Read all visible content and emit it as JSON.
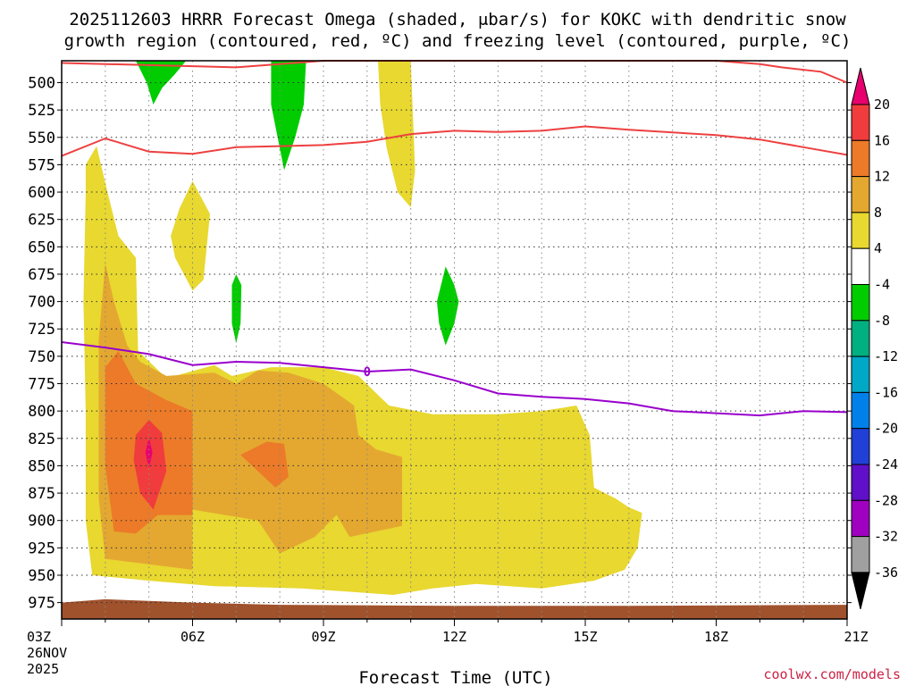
{
  "chart_data": {
    "type": "contour",
    "title_line1": "2025112603 HRRR Forecast Omega (shaded, μbar/s) for KOKC with dendritic snow",
    "title_line2": "growth region (contoured, red, ºC) and freezing level (contoured, purple, ºC)",
    "xlabel": "Forecast Time (UTC)",
    "credit": "coolwx.com/models",
    "x_ticks": [
      {
        "hour": 0,
        "label": "03Z"
      },
      {
        "hour": 3,
        "label": "06Z"
      },
      {
        "hour": 6,
        "label": "09Z"
      },
      {
        "hour": 9,
        "label": "12Z"
      },
      {
        "hour": 12,
        "label": "15Z"
      },
      {
        "hour": 15,
        "label": "18Z"
      },
      {
        "hour": 18,
        "label": "21Z"
      }
    ],
    "date_line1": "26NOV",
    "date_line2": "2025",
    "y_ticks": [
      500,
      525,
      550,
      575,
      600,
      625,
      650,
      675,
      700,
      725,
      750,
      775,
      800,
      825,
      850,
      875,
      900,
      925,
      950,
      975
    ],
    "xlim_hours": [
      0,
      18
    ],
    "ylim_hpa": [
      480,
      990
    ],
    "colorbar": {
      "labels": [
        "20",
        "16",
        "12",
        "8",
        "4",
        "-4",
        "-8",
        "-12",
        "-16",
        "-20",
        "-24",
        "-28",
        "-32",
        "-36"
      ],
      "colors_top_to_bottom": [
        "#e8006e",
        "#f03c3c",
        "#ec7a28",
        "#e4a830",
        "#e8d830",
        "#ffffff",
        "#00cc00",
        "#00b080",
        "#00a8c8",
        "#0080e8",
        "#2040d8",
        "#6010c8",
        "#a000c0",
        "#a0a0a0",
        "#000000"
      ]
    },
    "omega_colors": {
      "c4": "#e8d830",
      "c8": "#e4a830",
      "c12": "#ec7a28",
      "c16": "#f03c3c",
      "c20": "#e8006e",
      "neg4": "#00cc00",
      "ground": "#a0522d"
    },
    "omega_regions": [
      {
        "level": "c4",
        "points": [
          [
            0.55,
            575
          ],
          [
            0.8,
            558
          ],
          [
            1.05,
            600
          ],
          [
            1.3,
            640
          ],
          [
            1.7,
            660
          ],
          [
            1.75,
            745
          ],
          [
            2.4,
            770
          ],
          [
            3.5,
            758
          ],
          [
            3.9,
            768
          ],
          [
            4.8,
            760
          ],
          [
            6.0,
            760
          ],
          [
            6.8,
            768
          ],
          [
            7.5,
            795
          ],
          [
            8.5,
            803
          ],
          [
            9.5,
            803
          ],
          [
            10.0,
            803
          ],
          [
            11.0,
            800
          ],
          [
            11.8,
            795
          ],
          [
            12.1,
            822
          ],
          [
            12.2,
            870
          ],
          [
            12.7,
            880
          ],
          [
            13.0,
            888
          ],
          [
            13.3,
            893
          ],
          [
            13.2,
            925
          ],
          [
            12.9,
            945
          ],
          [
            12.2,
            955
          ],
          [
            11.0,
            962
          ],
          [
            9.5,
            958
          ],
          [
            8.5,
            962
          ],
          [
            7.6,
            968
          ],
          [
            5.5,
            962
          ],
          [
            3.5,
            960
          ],
          [
            2.0,
            955
          ],
          [
            0.7,
            950
          ],
          [
            0.55,
            900
          ],
          [
            0.55,
            800
          ],
          [
            0.5,
            700
          ],
          [
            0.55,
            600
          ]
        ]
      },
      {
        "level": "c4",
        "points": [
          [
            2.5,
            640
          ],
          [
            2.7,
            615
          ],
          [
            3.0,
            590
          ],
          [
            3.4,
            620
          ],
          [
            3.25,
            680
          ],
          [
            3.0,
            690
          ],
          [
            2.6,
            660
          ]
        ]
      },
      {
        "level": "c4",
        "points": [
          [
            7.25,
            480
          ],
          [
            8.0,
            480
          ],
          [
            8.1,
            580
          ],
          [
            8.0,
            614
          ],
          [
            7.7,
            600
          ],
          [
            7.45,
            560
          ],
          [
            7.3,
            520
          ]
        ]
      },
      {
        "level": "c8",
        "points": [
          [
            0.85,
            735
          ],
          [
            1.0,
            665
          ],
          [
            1.2,
            700
          ],
          [
            1.5,
            740
          ],
          [
            1.8,
            755
          ],
          [
            2.4,
            768
          ],
          [
            3.5,
            765
          ],
          [
            4.0,
            775
          ],
          [
            4.5,
            763
          ],
          [
            5.2,
            765
          ],
          [
            6.0,
            775
          ],
          [
            6.7,
            795
          ],
          [
            6.8,
            822
          ],
          [
            7.2,
            835
          ],
          [
            7.8,
            842
          ],
          [
            7.8,
            905
          ],
          [
            7.2,
            910
          ],
          [
            6.6,
            915
          ],
          [
            6.3,
            895
          ],
          [
            5.8,
            915
          ],
          [
            5.0,
            930
          ],
          [
            4.5,
            900
          ],
          [
            3.0,
            890
          ],
          [
            3.0,
            945
          ],
          [
            2.0,
            940
          ],
          [
            1.0,
            935
          ],
          [
            0.85,
            880
          ]
        ]
      },
      {
        "level": "c12",
        "points": [
          [
            1.0,
            760
          ],
          [
            1.3,
            745
          ],
          [
            1.7,
            775
          ],
          [
            2.4,
            790
          ],
          [
            3.0,
            800
          ],
          [
            3.0,
            895
          ],
          [
            2.2,
            895
          ],
          [
            1.7,
            912
          ],
          [
            1.2,
            910
          ],
          [
            1.0,
            850
          ]
        ]
      },
      {
        "level": "c12",
        "points": [
          [
            4.1,
            840
          ],
          [
            4.7,
            828
          ],
          [
            5.1,
            830
          ],
          [
            5.2,
            860
          ],
          [
            4.9,
            870
          ],
          [
            4.5,
            855
          ]
        ]
      },
      {
        "level": "c16",
        "points": [
          [
            1.7,
            822
          ],
          [
            2.0,
            808
          ],
          [
            2.3,
            820
          ],
          [
            2.4,
            855
          ],
          [
            2.1,
            890
          ],
          [
            1.8,
            875
          ],
          [
            1.65,
            845
          ]
        ]
      },
      {
        "level": "c20",
        "points": [
          [
            2.0,
            824
          ],
          [
            2.08,
            838
          ],
          [
            2.0,
            852
          ],
          [
            1.92,
            838
          ]
        ]
      },
      {
        "level": "neg4",
        "points": [
          [
            1.7,
            480
          ],
          [
            2.85,
            480
          ],
          [
            2.6,
            492
          ],
          [
            2.3,
            505
          ],
          [
            2.1,
            520
          ],
          [
            1.95,
            500
          ]
        ]
      },
      {
        "level": "neg4",
        "points": [
          [
            4.8,
            480
          ],
          [
            5.6,
            480
          ],
          [
            5.55,
            520
          ],
          [
            5.35,
            550
          ],
          [
            5.1,
            580
          ],
          [
            4.95,
            550
          ],
          [
            4.8,
            520
          ]
        ]
      },
      {
        "level": "neg4",
        "points": [
          [
            3.9,
            685
          ],
          [
            4.0,
            675
          ],
          [
            4.12,
            685
          ],
          [
            4.1,
            720
          ],
          [
            4.0,
            738
          ],
          [
            3.9,
            720
          ]
        ]
      },
      {
        "level": "neg4",
        "points": [
          [
            8.6,
            700
          ],
          [
            8.8,
            668
          ],
          [
            9.0,
            685
          ],
          [
            9.1,
            700
          ],
          [
            9.0,
            720
          ],
          [
            8.8,
            740
          ],
          [
            8.65,
            720
          ]
        ]
      }
    ],
    "ground_points": [
      [
        0,
        975
      ],
      [
        1.0,
        972
      ],
      [
        3.0,
        975
      ],
      [
        5.0,
        977
      ],
      [
        9.0,
        978
      ],
      [
        13.0,
        978
      ],
      [
        18.0,
        977
      ],
      [
        18.0,
        990
      ],
      [
        0,
        990
      ]
    ],
    "dgz_upper_line": [
      [
        0,
        482
      ],
      [
        3.0,
        485
      ],
      [
        4.0,
        486
      ],
      [
        5.0,
        483
      ],
      [
        6.0,
        480
      ],
      [
        15.0,
        480
      ],
      [
        16.0,
        483
      ],
      [
        16.5,
        486
      ],
      [
        17.4,
        490
      ],
      [
        18.0,
        500
      ]
    ],
    "dgz_lower_line": [
      [
        0,
        567
      ],
      [
        1.0,
        551
      ],
      [
        2.0,
        563
      ],
      [
        3.0,
        565
      ],
      [
        4.0,
        559
      ],
      [
        5.0,
        558
      ],
      [
        6.0,
        557
      ],
      [
        7.0,
        554
      ],
      [
        8.0,
        547
      ],
      [
        9.0,
        544
      ],
      [
        10.0,
        545
      ],
      [
        11.0,
        544
      ],
      [
        12.0,
        540
      ],
      [
        13.0,
        543
      ],
      [
        15.0,
        548
      ],
      [
        16.0,
        552
      ],
      [
        17.0,
        559
      ],
      [
        18.0,
        566
      ]
    ],
    "freezing_level_line": [
      [
        0,
        737
      ],
      [
        1.0,
        742
      ],
      [
        2.0,
        748
      ],
      [
        3.0,
        758
      ],
      [
        4.0,
        755
      ],
      [
        5.0,
        756
      ],
      [
        6.0,
        760
      ],
      [
        7.0,
        764
      ],
      [
        8.0,
        762
      ],
      [
        9.0,
        772
      ],
      [
        10.0,
        784
      ],
      [
        11.0,
        787
      ],
      [
        12.0,
        789
      ],
      [
        13.0,
        793
      ],
      [
        14.0,
        800
      ],
      [
        15.0,
        802
      ],
      [
        16.0,
        804
      ],
      [
        17.0,
        800
      ],
      [
        18.0,
        801
      ]
    ],
    "freezing_label": {
      "text": "0",
      "hour": 7.0,
      "hpa": 764
    }
  }
}
